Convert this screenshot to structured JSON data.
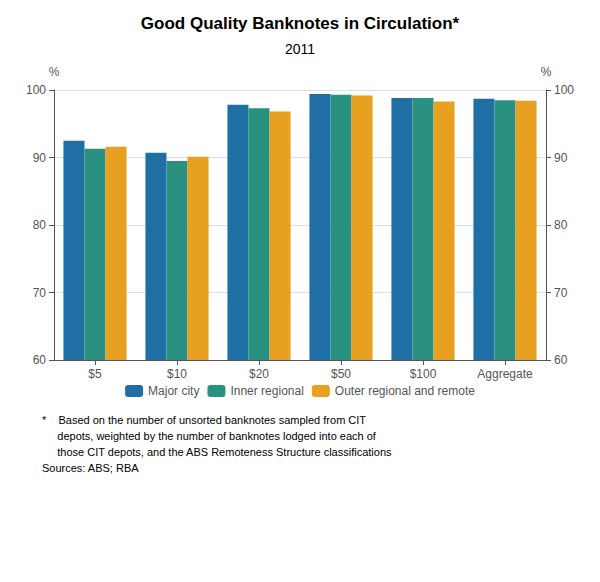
{
  "chart_data": {
    "type": "bar",
    "title": "Good Quality Banknotes in Circulation*",
    "subtitle": "2011",
    "categories": [
      "$5",
      "$10",
      "$20",
      "$50",
      "$100",
      "Aggregate"
    ],
    "series": [
      {
        "name": "Major city",
        "color": "#1f6fa5",
        "values": [
          92.5,
          90.7,
          97.8,
          99.4,
          98.8,
          98.7
        ]
      },
      {
        "name": "Inner regional",
        "color": "#2a9080",
        "values": [
          91.3,
          89.5,
          97.3,
          99.3,
          98.8,
          98.5
        ]
      },
      {
        "name": "Outer regional and remote",
        "color": "#e8a020",
        "values": [
          91.6,
          90.1,
          96.8,
          99.2,
          98.3,
          98.4
        ]
      }
    ],
    "ylabel": "%",
    "y2label": "%",
    "ylim": [
      60,
      100
    ],
    "yticks": [
      60,
      70,
      80,
      90,
      100
    ],
    "y2lim": [
      60,
      100
    ],
    "y2ticks": [
      60,
      70,
      80,
      90,
      100
    ],
    "grid": true,
    "legend": "bottom",
    "annotations": [
      "*    Based on the number of unsorted banknotes sampled from CIT",
      "     depots, weighted by the number of banknotes lodged into each of",
      "     those CIT depots, and the ABS Remoteness Structure classifications",
      "Sources: ABS; RBA"
    ]
  }
}
